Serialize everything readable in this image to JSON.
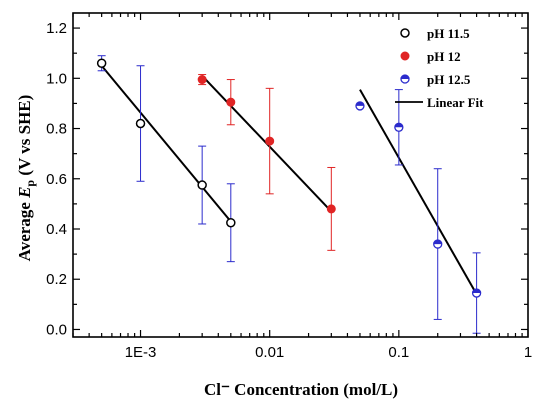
{
  "chart_data": {
    "type": "scatter",
    "xlabel": "Cl⁻ Concentration (mol/L)",
    "ylabel": "Average E_p (V vs SHE)",
    "ylabel_prefix": "Average ",
    "ylabel_main": "E",
    "ylabel_sub": "p",
    "ylabel_suffix": " (V vs SHE)",
    "xscale": "log",
    "xlim": [
      0.0003,
      1
    ],
    "ylim": [
      -0.03,
      1.26
    ],
    "x_ticks": [
      {
        "value": 0.001,
        "label": "1E-3"
      },
      {
        "value": 0.01,
        "label": "0.01"
      },
      {
        "value": 0.1,
        "label": "0.1"
      },
      {
        "value": 1,
        "label": "1"
      }
    ],
    "y_ticks": [
      {
        "value": 0.0,
        "label": "0.0"
      },
      {
        "value": 0.2,
        "label": "0.2"
      },
      {
        "value": 0.4,
        "label": "0.4"
      },
      {
        "value": 0.6,
        "label": "0.6"
      },
      {
        "value": 0.8,
        "label": "0.8"
      },
      {
        "value": 1.0,
        "label": "1.0"
      },
      {
        "value": 1.2,
        "label": "1.2"
      }
    ],
    "legend_position": "top-right",
    "series": [
      {
        "name": "pH 11.5",
        "marker": "open-circle",
        "color": "#000000",
        "errorbar_color": "#2b2bcc",
        "points": [
          {
            "x": 0.0005,
            "y": 1.06,
            "err_low": 0.03,
            "err_high": 0.03
          },
          {
            "x": 0.001,
            "y": 0.82,
            "err_low": 0.23,
            "err_high": 0.23
          },
          {
            "x": 0.003,
            "y": 0.575,
            "err_low": 0.155,
            "err_high": 0.155
          },
          {
            "x": 0.005,
            "y": 0.425,
            "err_low": 0.155,
            "err_high": 0.155
          }
        ],
        "fit": {
          "x": [
            0.0005,
            0.005
          ],
          "y": [
            1.05,
            0.43
          ]
        }
      },
      {
        "name": "pH 12",
        "marker": "filled-circle",
        "color": "#e02424",
        "errorbar_color": "#e02424",
        "points": [
          {
            "x": 0.003,
            "y": 0.995,
            "err_low": 0.02,
            "err_high": 0.02
          },
          {
            "x": 0.005,
            "y": 0.905,
            "err_low": 0.09,
            "err_high": 0.09
          },
          {
            "x": 0.01,
            "y": 0.75,
            "err_low": 0.21,
            "err_high": 0.21
          },
          {
            "x": 0.03,
            "y": 0.48,
            "err_low": 0.165,
            "err_high": 0.165
          }
        ],
        "fit": {
          "x": [
            0.003,
            0.03
          ],
          "y": [
            1.01,
            0.47
          ]
        }
      },
      {
        "name": "pH 12.5",
        "marker": "half-filled-circle",
        "color": "#2b2bcc",
        "errorbar_color": "#2b2bcc",
        "points": [
          {
            "x": 0.05,
            "y": 0.89,
            "err_low": 0.0,
            "err_high": 0.0
          },
          {
            "x": 0.1,
            "y": 0.805,
            "err_low": 0.15,
            "err_high": 0.15
          },
          {
            "x": 0.2,
            "y": 0.34,
            "err_low": 0.3,
            "err_high": 0.3
          },
          {
            "x": 0.4,
            "y": 0.145,
            "err_low": 0.16,
            "err_high": 0.16
          }
        ],
        "fit": {
          "x": [
            0.05,
            0.4
          ],
          "y": [
            0.955,
            0.14
          ]
        }
      }
    ],
    "fit_legend_label": "Linear Fit"
  }
}
